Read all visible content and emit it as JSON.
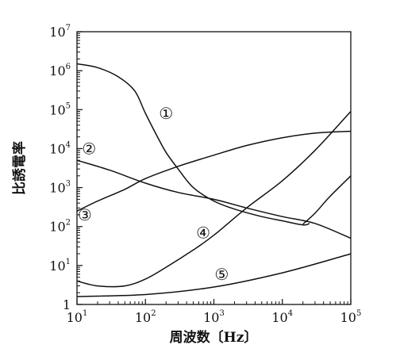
{
  "chart_data": {
    "type": "line",
    "title": "",
    "xlabel": "周波数〔Hz〕",
    "ylabel": "比誘電率",
    "x_scale": "log",
    "y_scale": "log",
    "xlim": [
      10,
      100000
    ],
    "ylim": [
      1,
      10000000
    ],
    "grid": false,
    "x_ticks": [
      {
        "base": "10",
        "exp": "1"
      },
      {
        "base": "10",
        "exp": "2"
      },
      {
        "base": "10",
        "exp": "3"
      },
      {
        "base": "10",
        "exp": "4"
      },
      {
        "base": "10",
        "exp": "5"
      }
    ],
    "y_ticks": [
      {
        "base": "1",
        "exp": ""
      },
      {
        "base": "10",
        "exp": "1"
      },
      {
        "base": "10",
        "exp": "2"
      },
      {
        "base": "10",
        "exp": "3"
      },
      {
        "base": "10",
        "exp": "4"
      },
      {
        "base": "10",
        "exp": "5"
      },
      {
        "base": "10",
        "exp": "6"
      },
      {
        "base": "10",
        "exp": "7"
      }
    ],
    "series": [
      {
        "name": "①",
        "label_at": [
          200,
          80000
        ],
        "points": [
          [
            10,
            1500000
          ],
          [
            20,
            1200000
          ],
          [
            40,
            700000
          ],
          [
            70,
            300000
          ],
          [
            100,
            80000
          ],
          [
            150,
            20000
          ],
          [
            200,
            8000
          ],
          [
            300,
            3000
          ],
          [
            500,
            1000
          ],
          [
            1000,
            450
          ],
          [
            2000,
            280
          ],
          [
            5000,
            180
          ],
          [
            10000,
            140
          ],
          [
            20000,
            110
          ],
          [
            25000,
            120
          ]
        ]
      },
      {
        "name": "②",
        "label_at": [
          15,
          10000
        ],
        "points": [
          [
            10,
            5000
          ],
          [
            30,
            2800
          ],
          [
            100,
            1300
          ],
          [
            300,
            750
          ],
          [
            1000,
            500
          ],
          [
            3000,
            300
          ],
          [
            10000,
            180
          ],
          [
            30000,
            120
          ],
          [
            100000,
            50
          ]
        ]
      },
      {
        "name": "③",
        "label_at": [
          13,
          200
        ],
        "points": [
          [
            10,
            250
          ],
          [
            20,
            450
          ],
          [
            50,
            900
          ],
          [
            100,
            1700
          ],
          [
            300,
            3500
          ],
          [
            1000,
            6800
          ],
          [
            3000,
            12000
          ],
          [
            10000,
            19000
          ],
          [
            30000,
            25000
          ],
          [
            100000,
            28000
          ]
        ]
      },
      {
        "name": "④",
        "label_at": [
          700,
          70
        ],
        "points": [
          [
            10,
            4
          ],
          [
            20,
            3
          ],
          [
            50,
            3
          ],
          [
            100,
            4.5
          ],
          [
            200,
            9
          ],
          [
            500,
            25
          ],
          [
            1000,
            60
          ],
          [
            3000,
            300
          ],
          [
            10000,
            1500
          ],
          [
            30000,
            9000
          ],
          [
            100000,
            90000
          ]
        ]
      },
      {
        "name": "⑤",
        "label_at": [
          1300,
          6
        ],
        "points": [
          [
            10,
            1.6
          ],
          [
            100,
            1.8
          ],
          [
            1000,
            2.8
          ],
          [
            10000,
            6.5
          ],
          [
            100000,
            20
          ]
        ]
      },
      {
        "name": "",
        "points": [
          [
            20000,
            115
          ],
          [
            30000,
            220
          ],
          [
            50000,
            600
          ],
          [
            100000,
            2000
          ]
        ]
      }
    ]
  }
}
